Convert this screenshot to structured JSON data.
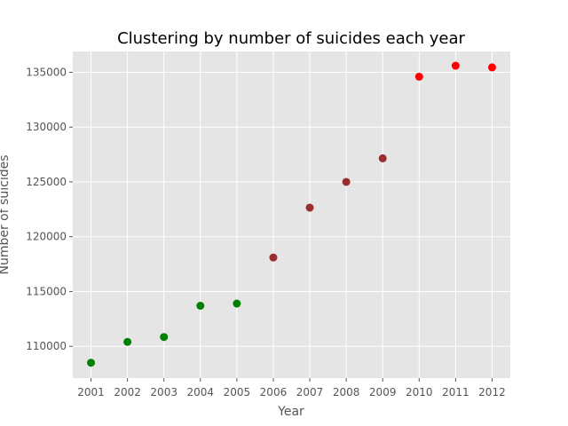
{
  "chart_data": {
    "type": "scatter",
    "title": "Clustering by number of suicides each year",
    "xlabel": "Year",
    "ylabel": "Number of suicides",
    "x": [
      2001,
      2002,
      2003,
      2004,
      2005,
      2006,
      2007,
      2008,
      2009,
      2010,
      2011,
      2012
    ],
    "y": [
      108500,
      110400,
      110850,
      113700,
      113900,
      118100,
      122650,
      125000,
      127150,
      134600,
      135600,
      135450
    ],
    "colors": [
      "#008000",
      "#008000",
      "#008000",
      "#008000",
      "#008000",
      "#9b2d30",
      "#9b2d30",
      "#9b2d30",
      "#9b2d30",
      "#ff0000",
      "#ff0000",
      "#ff0000"
    ],
    "xlim": [
      2000.5,
      2012.5
    ],
    "ylim": [
      107100,
      136900
    ],
    "xticks": [
      2001,
      2002,
      2003,
      2004,
      2005,
      2006,
      2007,
      2008,
      2009,
      2010,
      2011,
      2012
    ],
    "yticks": [
      110000,
      115000,
      120000,
      125000,
      130000,
      135000
    ],
    "grid": true,
    "style": {
      "background": "#e5e5e5",
      "grid_color": "#ffffff",
      "text_color": "#555555"
    }
  }
}
